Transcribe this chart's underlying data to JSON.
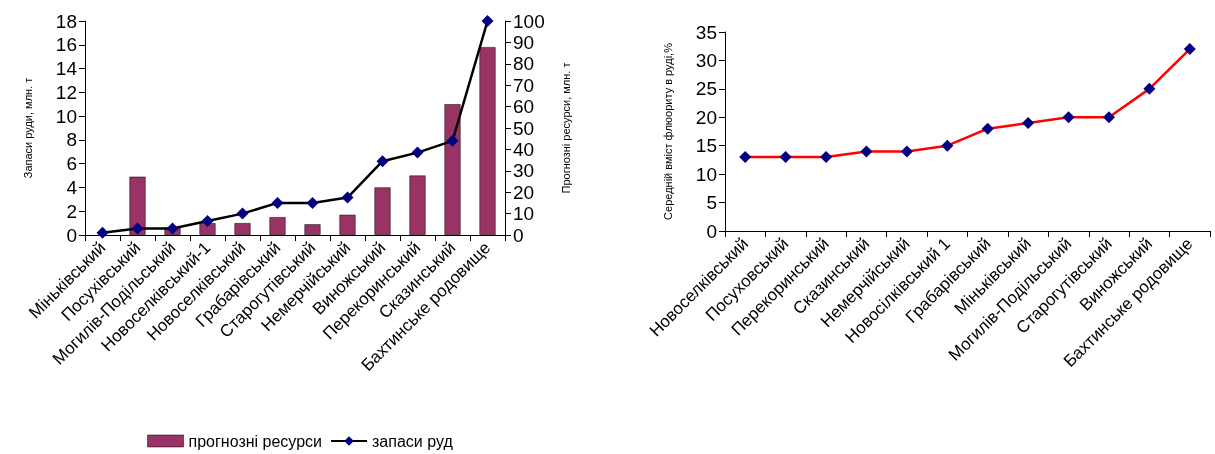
{
  "chart_data": [
    {
      "type": "bar",
      "categories": [
        "Міньківський",
        "Посухівський",
        "Могилів-Подільський",
        "Новоселківський-1",
        "Новоселківський",
        "Грабарівський",
        "Старогутівський",
        "Немерчійський",
        "Виножський",
        "Перекоринський",
        "Сказинський",
        "Бахтинське родовище"
      ],
      "ylabel": "Запаси руди, млн. т",
      "y2label": "Прогнозні ресурси, млн. т",
      "ylim": [
        0,
        18
      ],
      "yticks": [
        0,
        2,
        4,
        6,
        8,
        10,
        12,
        14,
        16,
        18
      ],
      "y2lim": [
        0,
        100
      ],
      "y2ticks": [
        0,
        10,
        20,
        30,
        40,
        50,
        60,
        70,
        80,
        90,
        100
      ],
      "grid": false,
      "legend": "bottom",
      "marker": "diamond",
      "series": [
        {
          "name": "прогнозні ресурси",
          "color": "#993366",
          "values": [
            null,
            4.9,
            0.6,
            1.0,
            1.0,
            1.5,
            0.9,
            1.7,
            4.0,
            5.0,
            11.0,
            15.8
          ]
        },
        {
          "name": "запаси руд",
          "type": "line",
          "axis": "y2",
          "color": "#000000",
          "colors": [
            "#000080",
            "#000080",
            "#000080",
            "#000080",
            "#000080",
            "#000080",
            "#000080",
            "#000080",
            "#000080",
            "#000080",
            "#000080",
            "#000080"
          ],
          "values": [
            1,
            3,
            3,
            6.5,
            10,
            15,
            15,
            17.5,
            34.5,
            38.5,
            44,
            100
          ]
        }
      ]
    },
    {
      "type": "line",
      "categories": [
        "Новоселківський",
        "Посуховський",
        "Перекоринський",
        "Сказинський",
        "Немерчійський",
        "Новосілківський 1",
        "Грабарівський",
        "Міньківський",
        "Могилів-Подільський",
        "Старогутівський",
        "Виножський",
        "Бахтинське родовище"
      ],
      "ylabel": "Середній вміст флюориту в руді,%",
      "ylim": [
        0,
        35
      ],
      "yticks": [
        0,
        5,
        10,
        15,
        20,
        25,
        30,
        35
      ],
      "grid": false,
      "legend": false,
      "marker": "diamond",
      "series": [
        {
          "color": "#ff0000",
          "colors": [
            "#000080",
            "#000080",
            "#000080",
            "#000080",
            "#000080",
            "#000080",
            "#000080",
            "#000080",
            "#000080",
            "#000080",
            "#000080",
            "#000080"
          ],
          "values": [
            13,
            13,
            13,
            14,
            14,
            15,
            18,
            19,
            20,
            20,
            25,
            32
          ]
        }
      ]
    }
  ]
}
